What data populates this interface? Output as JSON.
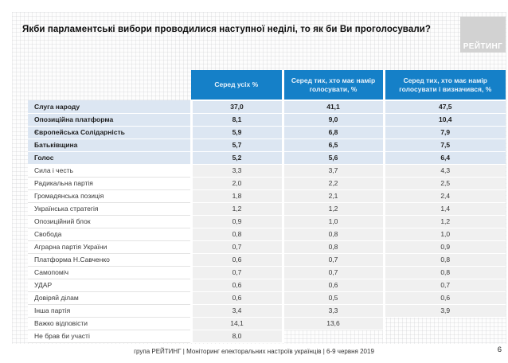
{
  "page": {
    "title": "Якби парламентські вибори проводилися наступної неділі, то як би Ви проголосували?",
    "footer": "група РЕЙТИНГ | Моніторинг електоральних настроїв українців  | 6-9 червня 2019",
    "page_number": "6",
    "logo_text": "РЕЙТИНГ"
  },
  "colors": {
    "header_blue": "#1580c8",
    "highlight_row_blue": "#dce6f2",
    "value_cell_gray": "#f0f0f0",
    "logo_gray": "#d2d2d2"
  },
  "table": {
    "columns": [
      "Серед усіх %",
      "Серед тих, хто має намір голосувати, %",
      "Серед тих, хто має намір голосувати і визначився, %"
    ],
    "rows": [
      {
        "name": "Слуга народу",
        "values": [
          "37,0",
          "41,1",
          "47,5"
        ],
        "highlight": true
      },
      {
        "name": "Опозиційна платформа",
        "values": [
          "8,1",
          "9,0",
          "10,4"
        ],
        "highlight": true
      },
      {
        "name": "Європейська Солідарність",
        "values": [
          "5,9",
          "6,8",
          "7,9"
        ],
        "highlight": true
      },
      {
        "name": "Батьківщина",
        "values": [
          "5,7",
          "6,5",
          "7,5"
        ],
        "highlight": true
      },
      {
        "name": "Голос",
        "values": [
          "5,2",
          "5,6",
          "6,4"
        ],
        "highlight": true
      },
      {
        "name": "Сила і честь",
        "values": [
          "3,3",
          "3,7",
          "4,3"
        ],
        "highlight": false
      },
      {
        "name": "Радикальна партія",
        "values": [
          "2,0",
          "2,2",
          "2,5"
        ],
        "highlight": false
      },
      {
        "name": "Громадянська позиція",
        "values": [
          "1,8",
          "2,1",
          "2,4"
        ],
        "highlight": false
      },
      {
        "name": "Українська стратегія",
        "values": [
          "1,2",
          "1,2",
          "1,4"
        ],
        "highlight": false
      },
      {
        "name": "Опозиційний блок",
        "values": [
          "0,9",
          "1,0",
          "1,2"
        ],
        "highlight": false
      },
      {
        "name": "Свобода",
        "values": [
          "0,8",
          "0,8",
          "1,0"
        ],
        "highlight": false
      },
      {
        "name": "Аграрна партія України",
        "values": [
          "0,7",
          "0,8",
          "0,9"
        ],
        "highlight": false
      },
      {
        "name": "Платформа Н.Савченко",
        "values": [
          "0,6",
          "0,7",
          "0,8"
        ],
        "highlight": false
      },
      {
        "name": "Самопоміч",
        "values": [
          "0,7",
          "0,7",
          "0,8"
        ],
        "highlight": false
      },
      {
        "name": "УДАР",
        "values": [
          "0,6",
          "0,6",
          "0,7"
        ],
        "highlight": false
      },
      {
        "name": "Довіряй ділам",
        "values": [
          "0,6",
          "0,5",
          "0,6"
        ],
        "highlight": false
      },
      {
        "name": "Інша партія",
        "values": [
          "3,4",
          "3,3",
          "3,9"
        ],
        "highlight": false
      },
      {
        "name": "Важко відповісти",
        "values": [
          "14,1",
          "13,6",
          ""
        ],
        "highlight": false
      },
      {
        "name": "Не брав би участі",
        "values": [
          "8,0",
          "",
          ""
        ],
        "highlight": false
      }
    ]
  }
}
